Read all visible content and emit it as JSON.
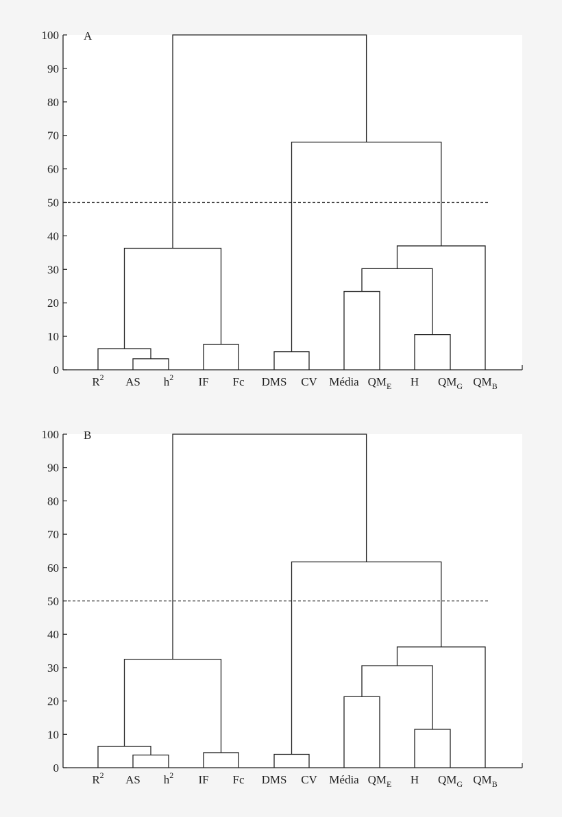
{
  "chart_data": [
    {
      "type": "dendrogram",
      "panel_label": "A",
      "ylim": [
        0,
        100
      ],
      "yticks": [
        0,
        10,
        20,
        30,
        40,
        50,
        60,
        70,
        80,
        90,
        100
      ],
      "leaves": [
        {
          "base": "R",
          "sup": "2",
          "sub": ""
        },
        {
          "base": "AS",
          "sup": "",
          "sub": ""
        },
        {
          "base": "h",
          "sup": "2",
          "sub": ""
        },
        {
          "base": "IF",
          "sup": "",
          "sub": ""
        },
        {
          "base": "Fc",
          "sup": "",
          "sub": ""
        },
        {
          "base": "DMS",
          "sup": "",
          "sub": ""
        },
        {
          "base": "CV",
          "sup": "",
          "sub": ""
        },
        {
          "base": "Média",
          "sup": "",
          "sub": ""
        },
        {
          "base": "QM",
          "sup": "",
          "sub": "E"
        },
        {
          "base": "H",
          "sup": "",
          "sub": ""
        },
        {
          "base": "QM",
          "sup": "",
          "sub": "G"
        },
        {
          "base": "QM",
          "sup": "",
          "sub": "B"
        }
      ],
      "cutoff": 50,
      "merges": [
        {
          "a": 1,
          "b": 2,
          "height": 3.3
        },
        {
          "a": 0,
          "b": 12,
          "height": 6.3
        },
        {
          "a": 3,
          "b": 4,
          "height": 7.6
        },
        {
          "a": 13,
          "b": 14,
          "height": 36.3
        },
        {
          "a": 5,
          "b": 6,
          "height": 5.4
        },
        {
          "a": 7,
          "b": 8,
          "height": 23.4
        },
        {
          "a": 9,
          "b": 10,
          "height": 10.5
        },
        {
          "a": 17,
          "b": 18,
          "height": 30.2
        },
        {
          "a": 19,
          "b": 11,
          "height": 37.0
        },
        {
          "a": 16,
          "b": 20,
          "height": 68.0
        },
        {
          "a": 15,
          "b": 21,
          "height": 100.0
        }
      ]
    },
    {
      "type": "dendrogram",
      "panel_label": "B",
      "ylim": [
        0,
        100
      ],
      "yticks": [
        0,
        10,
        20,
        30,
        40,
        50,
        60,
        70,
        80,
        90,
        100
      ],
      "leaves": [
        {
          "base": "R",
          "sup": "2",
          "sub": ""
        },
        {
          "base": "AS",
          "sup": "",
          "sub": ""
        },
        {
          "base": "h",
          "sup": "2",
          "sub": ""
        },
        {
          "base": "IF",
          "sup": "",
          "sub": ""
        },
        {
          "base": "Fc",
          "sup": "",
          "sub": ""
        },
        {
          "base": "DMS",
          "sup": "",
          "sub": ""
        },
        {
          "base": "CV",
          "sup": "",
          "sub": ""
        },
        {
          "base": "Média",
          "sup": "",
          "sub": ""
        },
        {
          "base": "QM",
          "sup": "",
          "sub": "E"
        },
        {
          "base": "H",
          "sup": "",
          "sub": ""
        },
        {
          "base": "QM",
          "sup": "",
          "sub": "G"
        },
        {
          "base": "QM",
          "sup": "",
          "sub": "B"
        }
      ],
      "cutoff": 50,
      "merges": [
        {
          "a": 1,
          "b": 2,
          "height": 3.8
        },
        {
          "a": 0,
          "b": 12,
          "height": 6.4
        },
        {
          "a": 3,
          "b": 4,
          "height": 4.5
        },
        {
          "a": 13,
          "b": 14,
          "height": 32.5
        },
        {
          "a": 5,
          "b": 6,
          "height": 4.0
        },
        {
          "a": 7,
          "b": 8,
          "height": 21.3
        },
        {
          "a": 9,
          "b": 10,
          "height": 11.5
        },
        {
          "a": 17,
          "b": 18,
          "height": 30.6
        },
        {
          "a": 19,
          "b": 11,
          "height": 36.2
        },
        {
          "a": 16,
          "b": 20,
          "height": 61.7
        },
        {
          "a": 15,
          "b": 21,
          "height": 100.0
        }
      ]
    }
  ]
}
